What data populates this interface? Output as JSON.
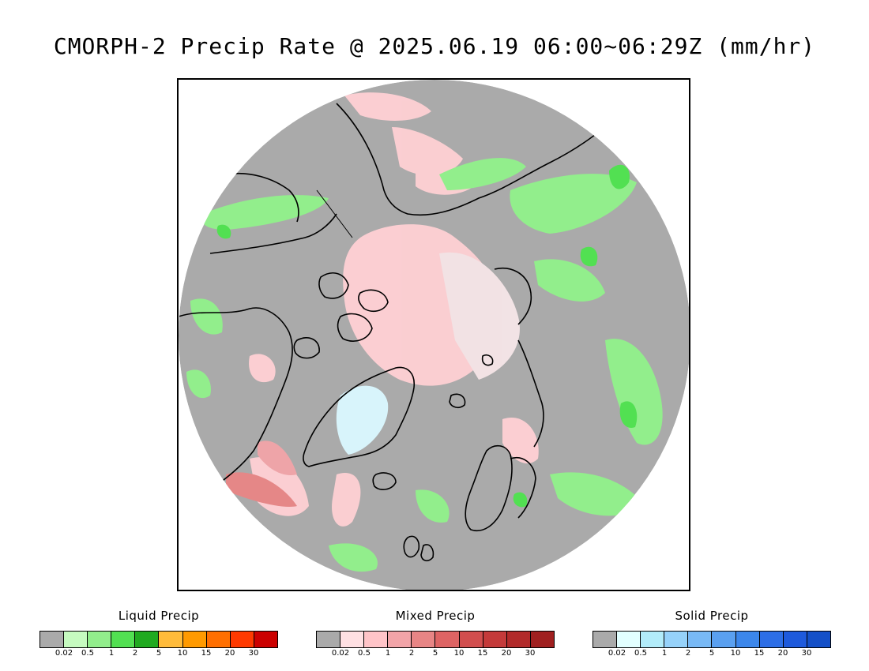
{
  "title": "CMORPH-2 Precip Rate @ 2025.06.19 06:00~06:29Z (mm/hr)",
  "map": {
    "projection": "north polar stereographic",
    "background_color": "#aaaaaa",
    "icon": "polar-precipitation-map"
  },
  "legends": [
    {
      "key": "liquid",
      "title": "Liquid Precip",
      "colors": [
        "#aaaaaa",
        "#c6fbc0",
        "#92ee8c",
        "#52e052",
        "#20aa20",
        "#ffbb3a",
        "#ff9a00",
        "#ff6f00",
        "#ff3a00",
        "#cc0000"
      ],
      "ticks": [
        "0.02",
        "0.5",
        "1",
        "2",
        "5",
        "10",
        "15",
        "20",
        "30"
      ]
    },
    {
      "key": "mixed",
      "title": "Mixed Precip",
      "colors": [
        "#aaaaaa",
        "#ffe0e3",
        "#ffc4c8",
        "#f2a4a8",
        "#e88585",
        "#de6464",
        "#d24e4e",
        "#c43a3a",
        "#b22a2a",
        "#a02020"
      ],
      "ticks": [
        "0.02",
        "0.5",
        "1",
        "2",
        "5",
        "10",
        "15",
        "20",
        "30"
      ]
    },
    {
      "key": "solid",
      "title": "Solid Precip",
      "colors": [
        "#aaaaaa",
        "#e2ffff",
        "#b2ecfa",
        "#96d2fa",
        "#78b9f5",
        "#5aa0f0",
        "#3c87eb",
        "#2d6ee6",
        "#1e5adc",
        "#1450c8"
      ],
      "ticks": [
        "0.02",
        "0.5",
        "1",
        "2",
        "5",
        "10",
        "15",
        "20",
        "30"
      ]
    }
  ]
}
